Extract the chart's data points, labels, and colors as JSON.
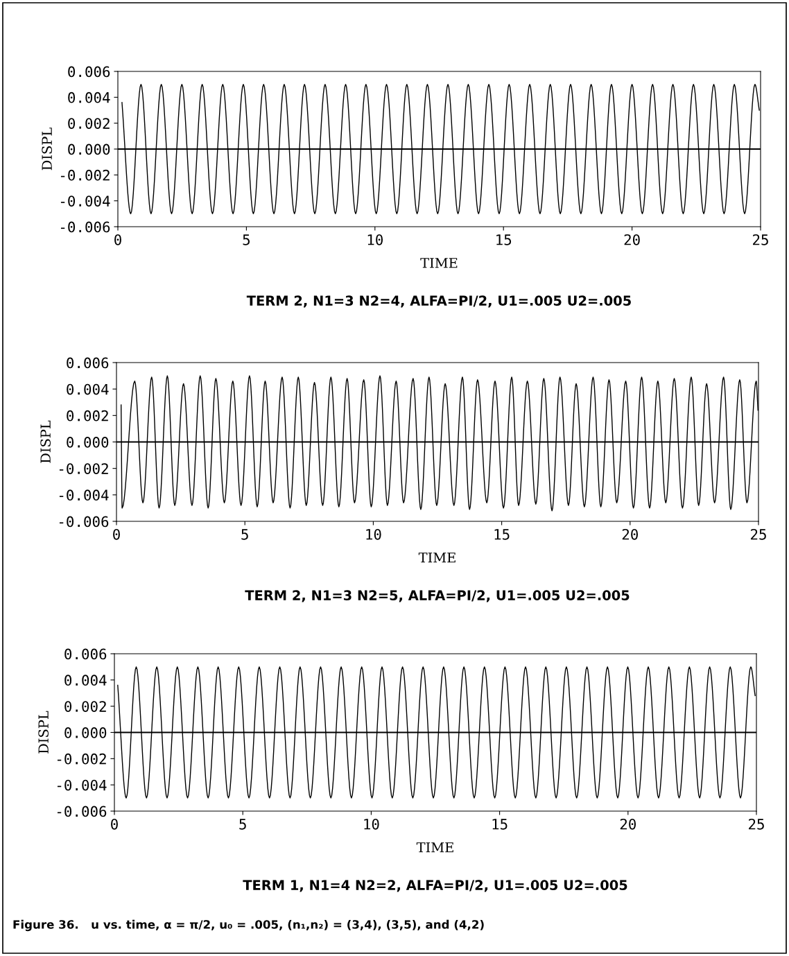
{
  "chart_data": [
    {
      "type": "line",
      "title": "TERM 2, N1=3 N2=4, ALFA=PI/2, U1=.005 U2=.005",
      "xlabel": "TIME",
      "ylabel": "DISPL",
      "xlim": [
        0,
        25
      ],
      "xticks": [
        0,
        5,
        10,
        15,
        20,
        25
      ],
      "ylim": [
        -0.006,
        0.006
      ],
      "yticks": [
        {
          "value": 0.006,
          "label": "0.006"
        },
        {
          "value": 0.004,
          "label": "0.004"
        },
        {
          "value": 0.002,
          "label": "0.002"
        },
        {
          "value": 0,
          "label": "0.000"
        },
        {
          "value": -0.002,
          "label": "-0.002"
        },
        {
          "value": -0.004,
          "label": "-0.004"
        },
        {
          "value": -0.006,
          "label": "-0.006"
        }
      ],
      "ref_lines": [
        {
          "axis": "y",
          "value": 0,
          "color": "#000000"
        }
      ],
      "series": [
        {
          "color": "#000000",
          "x": [
            0.16,
            0.5,
            0.9,
            1.29,
            1.69,
            2.09,
            2.49,
            2.89,
            3.28,
            3.68,
            4.08,
            4.48,
            4.88,
            5.27,
            5.67,
            6.07,
            6.47,
            6.87,
            7.26,
            7.66,
            8.06,
            8.46,
            8.86,
            9.25,
            9.65,
            10.05,
            10.45,
            10.85,
            11.24,
            11.64,
            12.04,
            12.44,
            12.84,
            13.23,
            13.63,
            14.03,
            14.43,
            14.83,
            15.22,
            15.62,
            16.02,
            16.42,
            16.82,
            17.21,
            17.61,
            18.01,
            18.41,
            18.81,
            19.2,
            19.6,
            20.0,
            20.4,
            20.8,
            21.19,
            21.59,
            21.99,
            22.39,
            22.79,
            23.18,
            23.58,
            23.98,
            24.38,
            24.78,
            24.95
          ],
          "values": [
            0.0036,
            -0.005,
            0.005,
            -0.005,
            0.005,
            -0.005,
            0.005,
            -0.005,
            0.005,
            -0.005,
            0.005,
            -0.005,
            0.005,
            -0.005,
            0.005,
            -0.005,
            0.005,
            -0.005,
            0.005,
            -0.005,
            0.005,
            -0.005,
            0.005,
            -0.005,
            0.005,
            -0.005,
            0.005,
            -0.005,
            0.005,
            -0.005,
            0.005,
            -0.005,
            0.005,
            -0.005,
            0.005,
            -0.005,
            0.005,
            -0.005,
            0.005,
            -0.005,
            0.005,
            -0.005,
            0.005,
            -0.005,
            0.005,
            -0.005,
            0.005,
            -0.005,
            0.005,
            -0.005,
            0.005,
            -0.005,
            0.005,
            -0.005,
            0.005,
            -0.005,
            0.005,
            -0.005,
            0.005,
            -0.005,
            0.005,
            -0.005,
            0.005,
            0.003
          ]
        }
      ]
    },
    {
      "type": "line",
      "title": "TERM 2, N1=3 N2=5, ALFA=PI/2, U1=.005 U2=.005",
      "xlabel": "TIME",
      "ylabel": "DISPL",
      "xlim": [
        0,
        25
      ],
      "xticks": [
        0,
        5,
        10,
        15,
        20,
        25
      ],
      "ylim": [
        -0.006,
        0.006
      ],
      "yticks": [
        {
          "value": 0.006,
          "label": "0.006"
        },
        {
          "value": 0.004,
          "label": "0.004"
        },
        {
          "value": 0.002,
          "label": "0.002"
        },
        {
          "value": 0,
          "label": "0.000"
        },
        {
          "value": -0.002,
          "label": "-0.002"
        },
        {
          "value": -0.004,
          "label": "-0.004"
        },
        {
          "value": -0.006,
          "label": "-0.006"
        }
      ],
      "ref_lines": [
        {
          "axis": "y",
          "value": 0,
          "color": "#000000"
        }
      ],
      "series": [
        {
          "color": "#000000",
          "x": [
            0.18,
            0.22,
            0.71,
            1.03,
            1.37,
            1.66,
            1.98,
            2.27,
            2.61,
            2.94,
            3.26,
            3.57,
            3.87,
            4.2,
            4.53,
            4.85,
            5.18,
            5.48,
            5.79,
            6.1,
            6.45,
            6.76,
            7.08,
            7.39,
            7.71,
            8.03,
            8.35,
            8.66,
            8.98,
            9.27,
            9.63,
            9.92,
            10.26,
            10.55,
            10.89,
            11.18,
            11.55,
            11.85,
            12.17,
            12.47,
            12.8,
            13.14,
            13.47,
            13.75,
            14.06,
            14.42,
            14.74,
            15.07,
            15.39,
            15.66,
            16.0,
            16.33,
            16.64,
            16.96,
            17.27,
            17.6,
            17.9,
            18.22,
            18.56,
            18.86,
            19.18,
            19.48,
            19.83,
            20.13,
            20.45,
            20.76,
            21.08,
            21.39,
            21.72,
            22.04,
            22.38,
            22.67,
            22.98,
            23.29,
            23.64,
            23.92,
            24.27,
            24.55,
            24.91,
            24.98
          ],
          "values": [
            0.0028,
            -0.005,
            0.0046,
            -0.0046,
            0.0049,
            -0.005,
            0.005,
            -0.0048,
            0.0044,
            -0.0048,
            0.005,
            -0.005,
            0.0048,
            -0.0046,
            0.0046,
            -0.0048,
            0.005,
            -0.0049,
            0.0046,
            -0.0046,
            0.0049,
            -0.005,
            0.0049,
            -0.0048,
            0.0045,
            -0.0048,
            0.0049,
            -0.0049,
            0.0048,
            -0.0046,
            0.0047,
            -0.0049,
            0.005,
            -0.0048,
            0.0046,
            -0.0046,
            0.0048,
            -0.0051,
            0.0049,
            -0.0048,
            0.0044,
            -0.0048,
            0.0049,
            -0.0051,
            0.0047,
            -0.0046,
            0.0046,
            -0.005,
            0.0049,
            -0.0048,
            0.0046,
            -0.0047,
            0.0048,
            -0.0052,
            0.0049,
            -0.0048,
            0.0044,
            -0.0049,
            0.0049,
            -0.0049,
            0.0047,
            -0.0046,
            0.0046,
            -0.005,
            0.0049,
            -0.005,
            0.0046,
            -0.0046,
            0.0048,
            -0.005,
            0.0049,
            -0.0048,
            0.0044,
            -0.0046,
            0.0049,
            -0.0051,
            0.0047,
            -0.0046,
            0.0046,
            0.0024
          ]
        }
      ]
    },
    {
      "type": "line",
      "title": "TERM 1, N1=4 N2=2, ALFA=PI/2, U1=.005 U2=.005",
      "xlabel": "TIME",
      "ylabel": "DISPL",
      "xlim": [
        0,
        25
      ],
      "xticks": [
        0,
        5,
        10,
        15,
        20,
        25
      ],
      "ylim": [
        -0.006,
        0.006
      ],
      "yticks": [
        {
          "value": 0.006,
          "label": "0.006"
        },
        {
          "value": 0.004,
          "label": "0.004"
        },
        {
          "value": 0.002,
          "label": "0.002"
        },
        {
          "value": 0,
          "label": "0.000"
        },
        {
          "value": -0.002,
          "label": "-0.002"
        },
        {
          "value": -0.004,
          "label": "-0.004"
        },
        {
          "value": -0.006,
          "label": "-0.006"
        }
      ],
      "ref_lines": [
        {
          "axis": "y",
          "value": 0,
          "color": "#000000"
        }
      ],
      "annotations": [
        "Figure 36.   u vs. time, α = π/2, u₀ = .005, (n₁,n₂) = (3,4), (3,5), and (4,2)"
      ],
      "series": [
        {
          "color": "#000000",
          "x": [
            0.13,
            0.46,
            0.85,
            1.25,
            1.65,
            2.05,
            2.45,
            2.85,
            3.25,
            3.65,
            4.04,
            4.44,
            4.84,
            5.24,
            5.64,
            6.04,
            6.44,
            6.84,
            7.23,
            7.63,
            8.03,
            8.43,
            8.83,
            9.23,
            9.63,
            10.03,
            10.42,
            10.82,
            11.22,
            11.62,
            12.02,
            12.42,
            12.82,
            13.22,
            13.61,
            14.01,
            14.41,
            14.81,
            15.21,
            15.61,
            16.01,
            16.41,
            16.8,
            17.2,
            17.6,
            18.0,
            18.4,
            18.8,
            19.2,
            19.6,
            19.99,
            20.39,
            20.79,
            21.19,
            21.59,
            21.99,
            22.39,
            22.79,
            23.18,
            23.58,
            23.98,
            24.38,
            24.78,
            24.95
          ],
          "values": [
            0.0036,
            -0.005,
            0.005,
            -0.005,
            0.005,
            -0.005,
            0.005,
            -0.005,
            0.005,
            -0.005,
            0.005,
            -0.005,
            0.005,
            -0.005,
            0.005,
            -0.005,
            0.005,
            -0.005,
            0.005,
            -0.005,
            0.005,
            -0.005,
            0.005,
            -0.005,
            0.005,
            -0.005,
            0.005,
            -0.005,
            0.005,
            -0.005,
            0.005,
            -0.005,
            0.005,
            -0.005,
            0.005,
            -0.005,
            0.005,
            -0.005,
            0.005,
            -0.005,
            0.005,
            -0.005,
            0.005,
            -0.005,
            0.005,
            -0.005,
            0.005,
            -0.005,
            0.005,
            -0.005,
            0.005,
            -0.005,
            0.005,
            -0.005,
            0.005,
            -0.005,
            0.005,
            -0.005,
            0.005,
            -0.005,
            0.005,
            -0.005,
            0.005,
            0.0028
          ]
        }
      ]
    }
  ]
}
